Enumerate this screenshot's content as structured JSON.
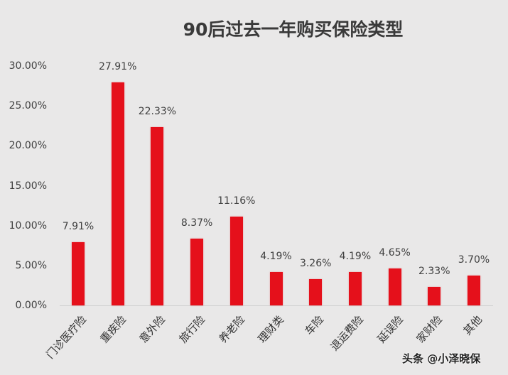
{
  "chart_data": {
    "type": "bar",
    "title": "90后过去一年购买保险类型",
    "xlabel": "",
    "ylabel": "",
    "ylim": [
      0,
      30
    ],
    "yticks": [
      "0.00%",
      "5.00%",
      "10.00%",
      "15.00%",
      "20.00%",
      "25.00%",
      "30.00%"
    ],
    "categories": [
      "门诊医疗险",
      "重疾险",
      "意外险",
      "旅行险",
      "养老险",
      "理财类",
      "车险",
      "退运费险",
      "延误险",
      "家财险",
      "其他"
    ],
    "values": [
      7.91,
      27.91,
      22.33,
      8.37,
      11.16,
      4.19,
      3.26,
      4.19,
      4.65,
      2.33,
      3.7
    ],
    "value_labels": [
      "7.91%",
      "27.91%",
      "22.33%",
      "8.37%",
      "11.16%",
      "4.19%",
      "3.26%",
      "4.19%",
      "4.65%",
      "2.33%",
      "3.70%"
    ],
    "grid": false,
    "legend": "none",
    "bar_color": "#e5101b"
  },
  "watermark": "头条 @小泽晓保"
}
